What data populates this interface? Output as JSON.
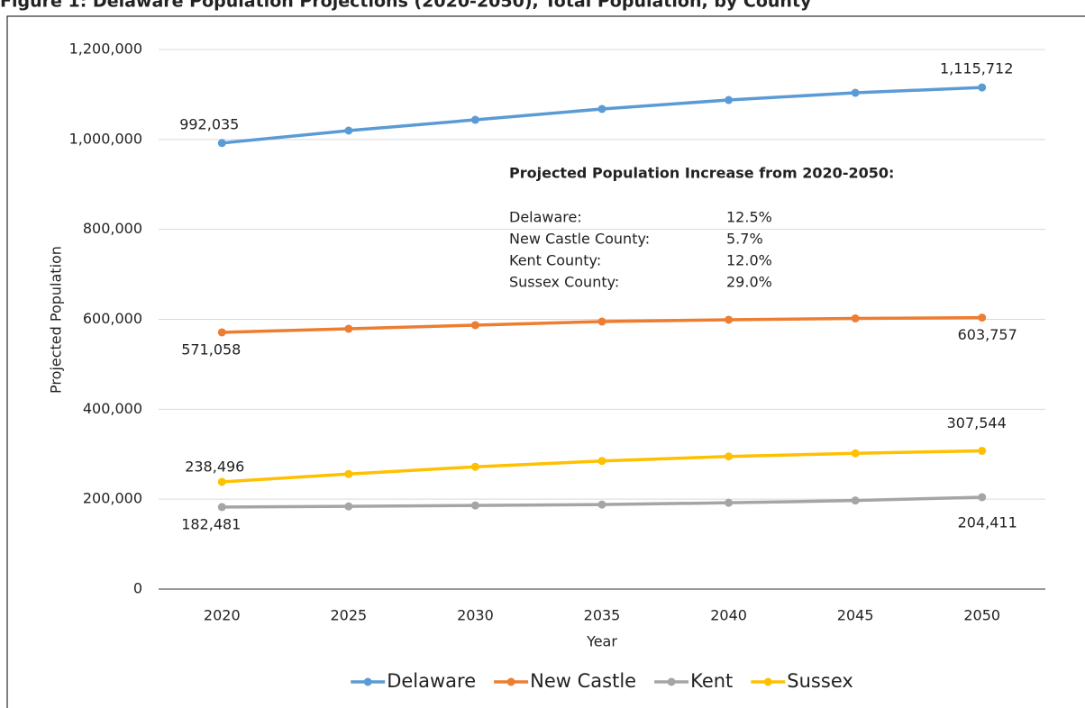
{
  "chart_data": {
    "type": "line",
    "title": "Figure 1: Delaware Population Projections (2020-2050), Total Population, by County",
    "x_label": "Year",
    "y_label": "Projected Population",
    "categories": [
      "2020",
      "2025",
      "2030",
      "2035",
      "2040",
      "2045",
      "2050"
    ],
    "series": [
      {
        "name": "Delaware",
        "color": "#5b9bd5",
        "values": [
          992035,
          1019700,
          1043700,
          1067800,
          1087800,
          1103800,
          1115712
        ],
        "value_labels": [
          "992,035",
          null,
          null,
          null,
          null,
          null,
          "1,115,712"
        ]
      },
      {
        "name": "New Castle",
        "color": "#ed7d31",
        "values": [
          571058,
          579000,
          587000,
          595000,
          599000,
          602000,
          603757
        ],
        "value_labels": [
          "571,058",
          null,
          null,
          null,
          null,
          null,
          "603,757"
        ]
      },
      {
        "name": "Kent",
        "color": "#a5a5a5",
        "values": [
          182481,
          184000,
          186000,
          188000,
          192000,
          197000,
          204411
        ],
        "value_labels": [
          "182,481",
          null,
          null,
          null,
          null,
          null,
          "204,411"
        ]
      },
      {
        "name": "Sussex",
        "color": "#ffc000",
        "values": [
          238496,
          256000,
          272000,
          285000,
          295000,
          302000,
          307544
        ],
        "value_labels": [
          "238,496",
          null,
          null,
          null,
          null,
          null,
          "307,544"
        ]
      }
    ],
    "ylim": [
      0,
      1200000
    ],
    "yticks": [
      0,
      {
        "value": 200000,
        "label": "200,000"
      },
      {
        "value": 400000,
        "label": "400,000"
      },
      {
        "value": 600000,
        "label": "600,000"
      },
      {
        "value": 800000,
        "label": "800,000"
      },
      {
        "value": 1000000,
        "label": "1,000,000"
      },
      {
        "value": 1200000,
        "label": "1,200,000"
      }
    ],
    "grid": true,
    "legend": "bottom",
    "annotation": {
      "title": "Projected Population  Increase from 2020-2050:",
      "rows": [
        [
          "Delaware:",
          "12.5%"
        ],
        [
          "New Castle County:",
          "5.7%"
        ],
        [
          "Kent County:",
          "12.0%"
        ],
        [
          "Sussex County:",
          "29.0%"
        ]
      ]
    }
  }
}
